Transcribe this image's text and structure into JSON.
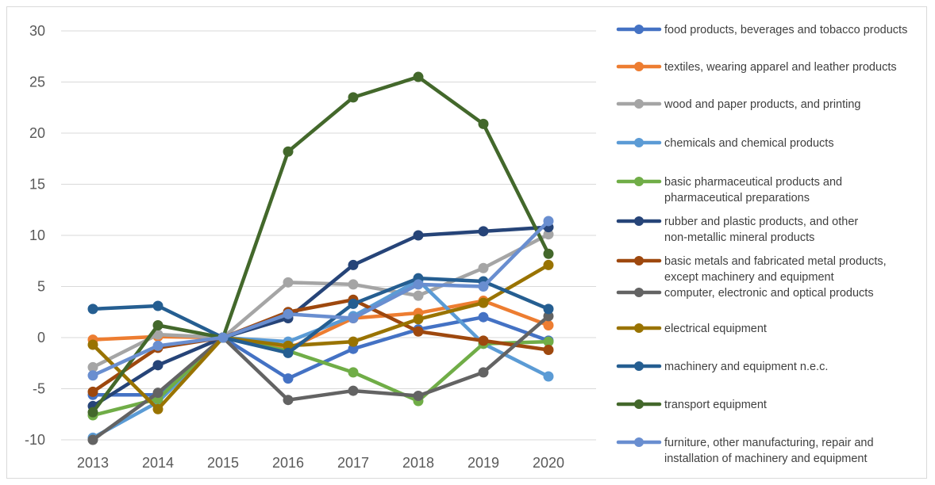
{
  "chart_data": {
    "type": "line",
    "x": [
      "2013",
      "2014",
      "2015",
      "2016",
      "2017",
      "2018",
      "2019",
      "2020"
    ],
    "ylim": [
      -10,
      30
    ],
    "yticks": [
      "-10",
      "-5",
      "0",
      "5",
      "10",
      "15",
      "20",
      "25",
      "30"
    ],
    "grid": true,
    "legend_position": "right",
    "series": [
      {
        "name": "food products, beverages and tobacco products",
        "color": "#4472c4",
        "values": [
          -5.6,
          -5.6,
          0,
          -4.0,
          -1.1,
          0.8,
          2.0,
          -0.3
        ]
      },
      {
        "name": "textiles, wearing apparel and leather products",
        "color": "#ed7d31",
        "values": [
          -0.2,
          0.1,
          0,
          -1.1,
          1.9,
          2.4,
          3.6,
          1.2
        ]
      },
      {
        "name": "wood and paper products, and printing",
        "color": "#a5a5a5",
        "values": [
          -2.9,
          0.3,
          0,
          5.4,
          5.2,
          4.1,
          6.8,
          10.1
        ]
      },
      {
        "name": "chemicals and chemical products",
        "color": "#5b9bd5",
        "values": [
          -9.8,
          -6.3,
          0,
          -0.4,
          2.1,
          5.6,
          -0.6,
          -3.8
        ]
      },
      {
        "name": "basic pharmaceutical products and pharmaceutical preparations",
        "color": "#70ad47",
        "values": [
          -7.6,
          -6.0,
          0,
          -1.3,
          -3.4,
          -6.2,
          -0.6,
          -0.4
        ]
      },
      {
        "name": "rubber and plastic products, and other non-metallic mineral products",
        "color": "#264478",
        "values": [
          -6.7,
          -2.7,
          0,
          1.9,
          7.1,
          10.0,
          10.4,
          10.8
        ]
      },
      {
        "name": "basic metals and fabricated metal products, except machinery and equipment",
        "color": "#9e480e",
        "values": [
          -5.3,
          -1.0,
          0,
          2.5,
          3.7,
          0.6,
          -0.3,
          -1.2
        ]
      },
      {
        "name": "computer, electronic and optical products",
        "color": "#636363",
        "values": [
          -10.0,
          -5.4,
          0,
          -6.1,
          -5.2,
          -5.7,
          -3.4,
          2.1
        ]
      },
      {
        "name": "electrical equipment",
        "color": "#997300",
        "values": [
          -0.7,
          -7.0,
          0,
          -0.8,
          -0.4,
          1.8,
          3.4,
          7.1
        ]
      },
      {
        "name": "machinery and equipment n.e.c.",
        "color": "#255e91",
        "values": [
          2.8,
          3.1,
          0,
          -1.5,
          3.3,
          5.8,
          5.5,
          2.8
        ]
      },
      {
        "name": "transport equipment",
        "color": "#43682b",
        "values": [
          -7.3,
          1.2,
          0,
          18.2,
          23.5,
          25.5,
          20.9,
          8.2
        ]
      },
      {
        "name": "furniture, other manufacturing, repair and installation of machinery and equipment",
        "color": "#698ed0",
        "values": [
          -3.7,
          -0.8,
          0,
          2.3,
          1.9,
          5.2,
          5.0,
          11.4
        ]
      }
    ]
  }
}
